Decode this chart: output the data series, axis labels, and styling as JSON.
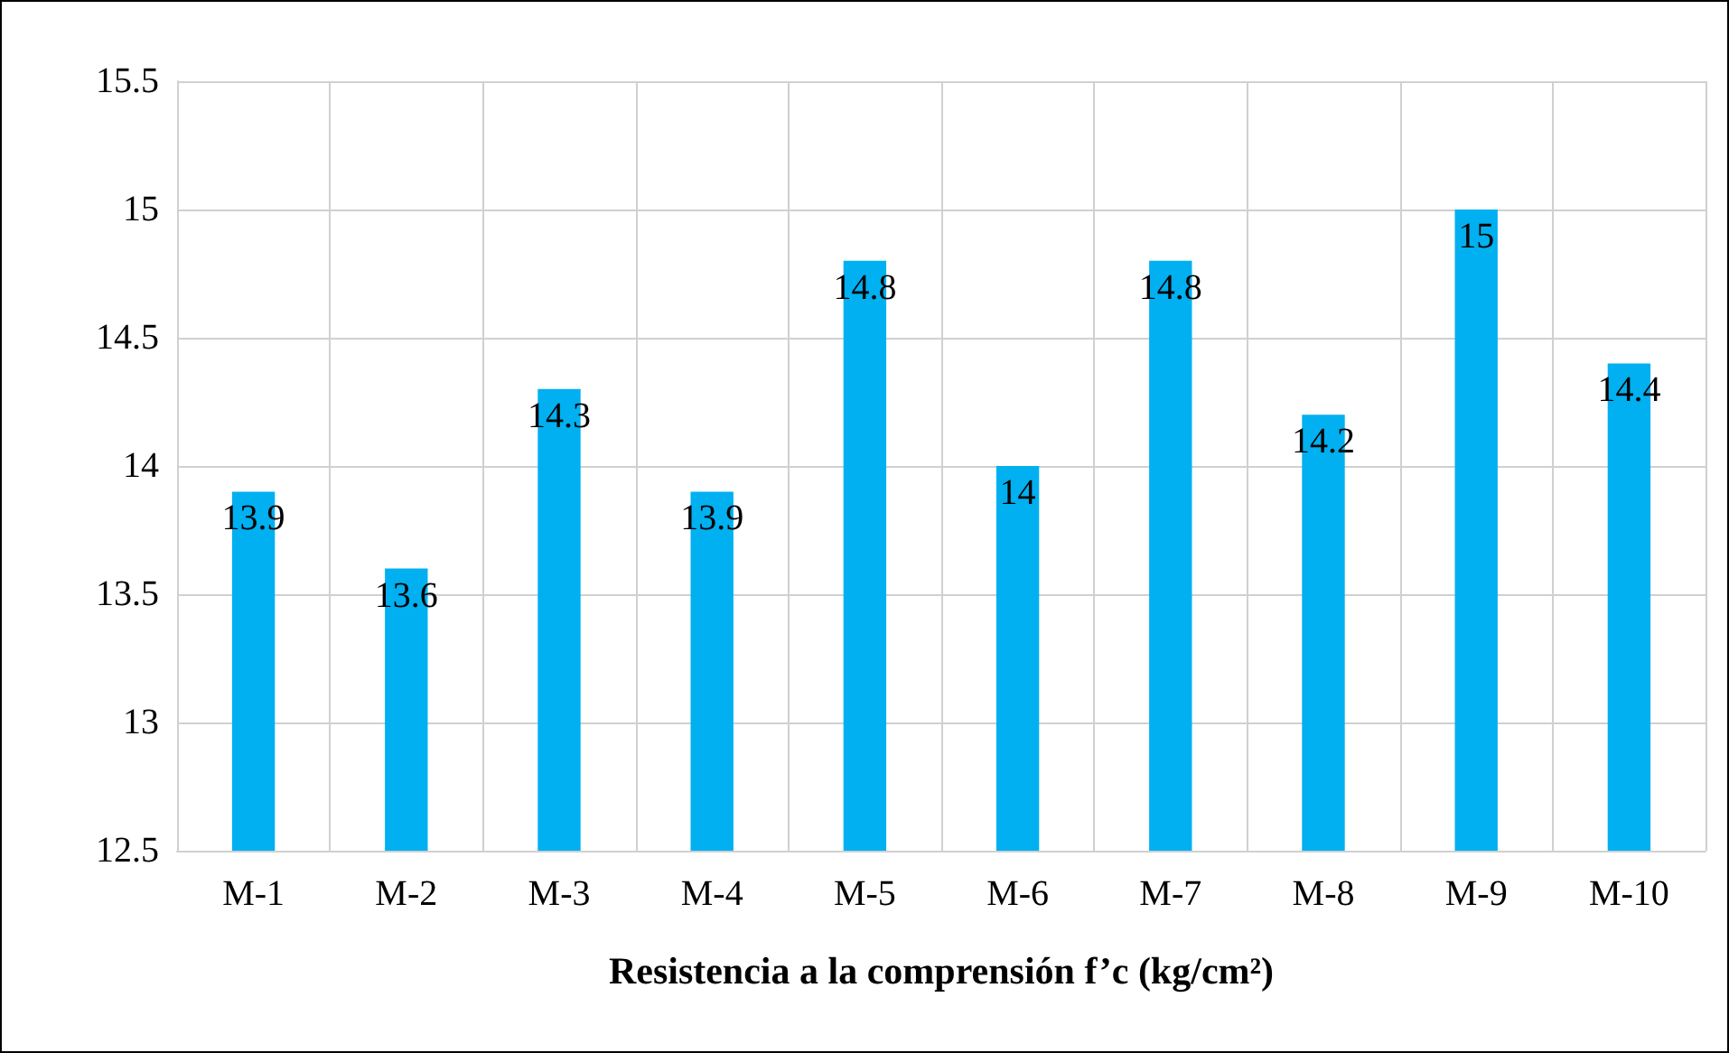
{
  "chart_data": {
    "type": "bar",
    "xlabel": "Resistencia a la comprensión f’c (kg/cm²)",
    "categories": [
      "M-1",
      "M-2",
      "M-3",
      "M-4",
      "M-5",
      "M-6",
      "M-7",
      "M-8",
      "M-9",
      "M-10"
    ],
    "values": [
      13.9,
      13.6,
      14.3,
      13.9,
      14.8,
      14,
      14.8,
      14.2,
      15,
      14.4
    ],
    "color": "#00b0f0",
    "ylim": [
      12.5,
      15.5
    ],
    "yticks": [
      12.5,
      13,
      13.5,
      14,
      14.5,
      15,
      15.5
    ],
    "grid": true,
    "data_labels": true
  }
}
